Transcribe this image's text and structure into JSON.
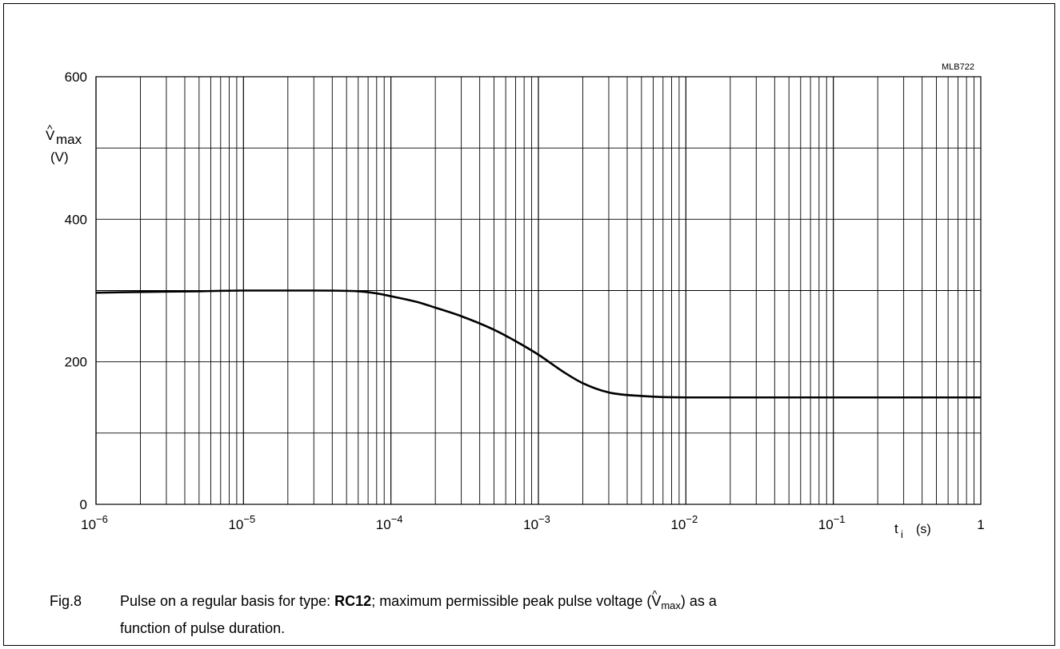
{
  "figure": {
    "code": "MLB722",
    "number": "Fig.8",
    "caption": {
      "part1": "Pulse on a regular basis for type: ",
      "type_name": "RC12",
      "part2": "; maximum permissible peak pulse voltage (",
      "symbol_main": "V",
      "symbol_hat": "^",
      "symbol_sub": "max",
      "part3": ") as a",
      "line2": "function of pulse duration."
    }
  },
  "chart_data": {
    "type": "line",
    "x_scale": "log",
    "xlim": [
      1e-06,
      1
    ],
    "ylim": [
      0,
      600
    ],
    "grid": true,
    "ylabel": {
      "symbol": "V",
      "hat": "^",
      "sub": "max",
      "unit": "(V)"
    },
    "xlabel": {
      "symbol": "t",
      "sub": "i",
      "unit": "(s)"
    },
    "x_ticks": [
      {
        "value": 1e-06,
        "base": "10",
        "exp": "−6"
      },
      {
        "value": 1e-05,
        "base": "10",
        "exp": "−5"
      },
      {
        "value": 0.0001,
        "base": "10",
        "exp": "−4"
      },
      {
        "value": 0.001,
        "base": "10",
        "exp": "−3"
      },
      {
        "value": 0.01,
        "base": "10",
        "exp": "−2"
      },
      {
        "value": 0.1,
        "base": "10",
        "exp": "−1"
      },
      {
        "value": 1,
        "base": "1",
        "exp": ""
      }
    ],
    "y_ticks": [
      {
        "value": 0,
        "label": "0"
      },
      {
        "value": 200,
        "label": "200"
      },
      {
        "value": 400,
        "label": "400"
      },
      {
        "value": 600,
        "label": "600"
      }
    ],
    "y_gridlines": [
      0,
      100,
      200,
      300,
      400,
      500,
      600
    ],
    "series": [
      {
        "x": [
          1e-06,
          2e-06,
          5e-06,
          1e-05,
          3e-05,
          6e-05,
          8e-05,
          0.0001,
          0.00015,
          0.0002,
          0.0003,
          0.0005,
          0.0007,
          0.001,
          0.0015,
          0.002,
          0.003,
          0.005,
          0.01,
          0.02,
          0.05,
          0.1,
          0.5,
          1
        ],
        "y": [
          297,
          298,
          299,
          300,
          300,
          299,
          296,
          292,
          284,
          276,
          264,
          245,
          229,
          210,
          185,
          170,
          157,
          152,
          150,
          150,
          150,
          150,
          150,
          150
        ]
      }
    ]
  }
}
